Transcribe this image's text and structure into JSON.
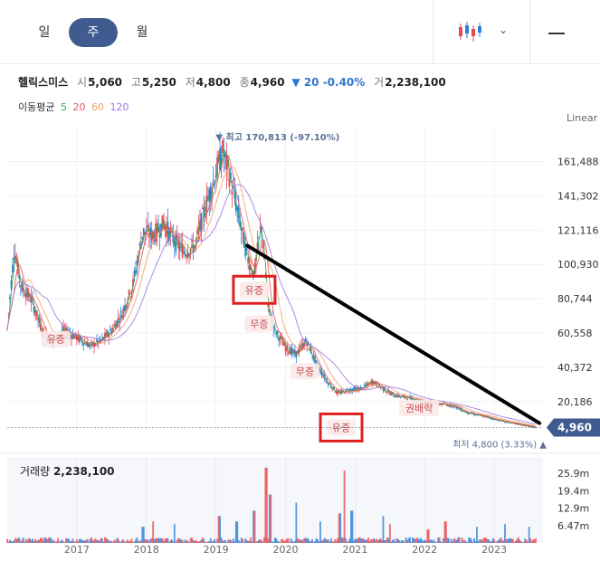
{
  "tabs": [
    {
      "label": "일",
      "active": false
    },
    {
      "label": "주",
      "active": true
    },
    {
      "label": "월",
      "active": false
    }
  ],
  "toolbar": {
    "chart_type_icon": "candlestick-icon",
    "dropdown_icon": "chevron-down-icon",
    "dash_icon": "minus-icon"
  },
  "stock": {
    "name": "헬릭스미스",
    "open_label": "시",
    "open": "5,060",
    "high_label": "고",
    "high": "5,250",
    "low_label": "저",
    "low": "4,800",
    "close_label": "종",
    "close": "4,960",
    "change": "▼ 20 -0.40%",
    "volume_label": "거",
    "volume": "2,238,100"
  },
  "moving_average": {
    "label": "이동평균",
    "periods": [
      {
        "value": "5",
        "color": "#2eae4a"
      },
      {
        "value": "20",
        "color": "#e8555a"
      },
      {
        "value": "60",
        "color": "#f0a26a"
      },
      {
        "value": "120",
        "color": "#9a7ae0"
      }
    ]
  },
  "scale_label": "Linear",
  "volume_panel": {
    "label": "거래량",
    "value": "2,238,100"
  },
  "colors": {
    "up": "#e8494f",
    "down": "#2c7fd6",
    "accent": "#3f5b8f",
    "annotation_box": "#e02020",
    "trend_line": "#000000"
  },
  "chart_data": [
    {
      "type": "candlestick",
      "title": "",
      "y_ticks": [
        "161,488",
        "141,302",
        "121,116",
        "100,930",
        "80,744",
        "60,558",
        "40,372",
        "20,186"
      ],
      "y_tick_values": [
        161488,
        141302,
        121116,
        100930,
        80744,
        60558,
        40372,
        20186
      ],
      "ylim": [
        2000,
        182000
      ],
      "x_ticks": [
        "2017",
        "2018",
        "2019",
        "2020",
        "2021",
        "2022",
        "2023"
      ],
      "x_tick_dates": [
        2017.0,
        2018.0,
        2019.0,
        2020.0,
        2021.0,
        2022.0,
        2023.0
      ],
      "xlim": [
        2016.0,
        2023.7
      ],
      "grid": true,
      "current_price": {
        "label": "4,960",
        "value": 4960
      },
      "high_marker": {
        "label": "▼ 최고 170,813 (-97.10%)",
        "value": 170813,
        "date": 2019.1
      },
      "low_marker": {
        "label": "최저 4,800 (3.33%) ▲",
        "value": 4800,
        "date": 2023.65
      },
      "price_path": [
        [
          2016.0,
          63000
        ],
        [
          2016.1,
          110000
        ],
        [
          2016.2,
          88000
        ],
        [
          2016.35,
          80000
        ],
        [
          2016.5,
          62000
        ],
        [
          2016.65,
          55000
        ],
        [
          2016.8,
          62000
        ],
        [
          2017.0,
          58000
        ],
        [
          2017.2,
          53000
        ],
        [
          2017.35,
          56000
        ],
        [
          2017.5,
          62000
        ],
        [
          2017.65,
          72000
        ],
        [
          2017.8,
          88000
        ],
        [
          2017.95,
          120000
        ],
        [
          2018.1,
          118000
        ],
        [
          2018.25,
          125000
        ],
        [
          2018.4,
          115000
        ],
        [
          2018.55,
          108000
        ],
        [
          2018.7,
          112000
        ],
        [
          2018.85,
          135000
        ],
        [
          2019.0,
          155000
        ],
        [
          2019.1,
          168000
        ],
        [
          2019.2,
          152000
        ],
        [
          2019.35,
          125000
        ],
        [
          2019.45,
          105000
        ],
        [
          2019.55,
          95000
        ],
        [
          2019.65,
          125000
        ],
        [
          2019.75,
          75000
        ],
        [
          2019.85,
          62000
        ],
        [
          2020.0,
          52000
        ],
        [
          2020.15,
          48000
        ],
        [
          2020.3,
          56000
        ],
        [
          2020.45,
          42000
        ],
        [
          2020.6,
          32000
        ],
        [
          2020.75,
          25000
        ],
        [
          2020.9,
          27000
        ],
        [
          2021.1,
          28000
        ],
        [
          2021.25,
          32000
        ],
        [
          2021.4,
          28000
        ],
        [
          2021.55,
          24000
        ],
        [
          2021.7,
          23000
        ],
        [
          2021.85,
          22000
        ],
        [
          2022.0,
          20000
        ],
        [
          2022.2,
          19000
        ],
        [
          2022.4,
          18000
        ],
        [
          2022.6,
          14000
        ],
        [
          2022.8,
          12000
        ],
        [
          2023.0,
          10000
        ],
        [
          2023.2,
          8000
        ],
        [
          2023.4,
          6500
        ],
        [
          2023.6,
          4960
        ]
      ],
      "series": [
        {
          "name": "5",
          "color": "#2eae4a",
          "window": 2
        },
        {
          "name": "20",
          "color": "#e8555a",
          "window": 6
        },
        {
          "name": "60",
          "color": "#f0a26a",
          "window": 14
        },
        {
          "name": "120",
          "color": "#9a7ae0",
          "window": 28
        }
      ],
      "annotations": [
        {
          "label": "유증",
          "date": 2016.7,
          "value": 57000,
          "boxed": false
        },
        {
          "label": "유증",
          "date": 2019.55,
          "value": 86000,
          "boxed": true
        },
        {
          "label": "무증",
          "date": 2019.62,
          "value": 66000,
          "boxed": false
        },
        {
          "label": "무증",
          "date": 2020.28,
          "value": 38000,
          "boxed": false
        },
        {
          "label": "유증",
          "date": 2020.8,
          "value": 4960,
          "boxed": true
        },
        {
          "label": "권배락",
          "date": 2021.92,
          "value": 16500,
          "boxed": false
        }
      ],
      "trend_line": [
        [
          2019.45,
          112000
        ],
        [
          2023.65,
          7500
        ]
      ]
    },
    {
      "type": "bar",
      "title": "거래량",
      "y_ticks": [
        "25.9m",
        "19.4m",
        "12.9m",
        "6.47m"
      ],
      "y_tick_values": [
        25.9,
        19.4,
        12.9,
        6.47
      ],
      "ylim": [
        0,
        32
      ],
      "unit": "million shares",
      "spikes": [
        {
          "date": 2017.95,
          "value": 6
        },
        {
          "date": 2018.1,
          "value": 8
        },
        {
          "date": 2018.4,
          "value": 7
        },
        {
          "date": 2019.05,
          "value": 10
        },
        {
          "date": 2019.3,
          "value": 8
        },
        {
          "date": 2019.55,
          "value": 12
        },
        {
          "date": 2019.72,
          "value": 28
        },
        {
          "date": 2019.78,
          "value": 18
        },
        {
          "date": 2020.15,
          "value": 15
        },
        {
          "date": 2020.5,
          "value": 8
        },
        {
          "date": 2020.78,
          "value": 11
        },
        {
          "date": 2020.85,
          "value": 27
        },
        {
          "date": 2020.95,
          "value": 12
        },
        {
          "date": 2021.4,
          "value": 10
        },
        {
          "date": 2021.5,
          "value": 7
        },
        {
          "date": 2022.05,
          "value": 5
        },
        {
          "date": 2022.3,
          "value": 8
        },
        {
          "date": 2022.75,
          "value": 6
        },
        {
          "date": 2023.15,
          "value": 7
        },
        {
          "date": 2023.5,
          "value": 6
        }
      ]
    }
  ]
}
